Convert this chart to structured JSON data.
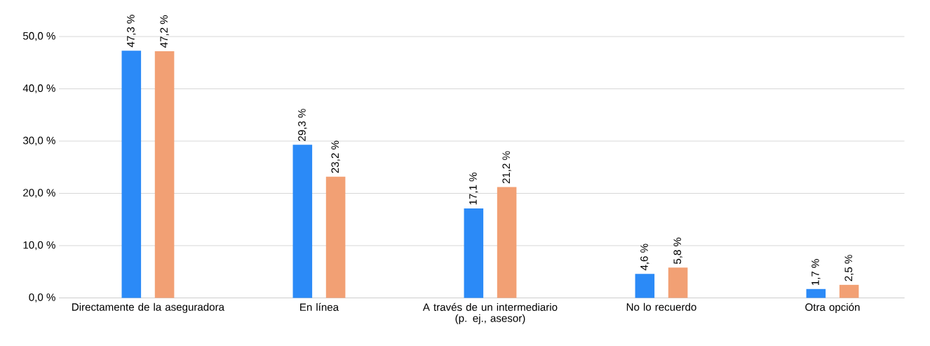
{
  "chart_data": {
    "type": "bar",
    "categories": [
      "Directamente de la aseguradora",
      "En línea",
      "A través de un intermediario (p. ej., asesor)",
      "No lo recuerdo",
      "Otra opción"
    ],
    "series": [
      {
        "color": "#2b8af7",
        "values": [
          47.3,
          29.3,
          17.1,
          4.6,
          1.7
        ],
        "value_labels": [
          "47,3 %",
          "29,3 %",
          "17,1 %",
          "4,6 %",
          "1,7 %"
        ]
      },
      {
        "color": "#f2a074",
        "values": [
          47.2,
          23.2,
          21.2,
          5.8,
          2.5
        ],
        "value_labels": [
          "47,2 %",
          "23,2 %",
          "21,2 %",
          "5,8 %",
          "2,5 %"
        ]
      }
    ],
    "ylim": [
      0,
      50
    ],
    "yticks": [
      {
        "value": 0,
        "label": "0,0 %"
      },
      {
        "value": 10,
        "label": "10,0 %"
      },
      {
        "value": 20,
        "label": "20,0 %"
      },
      {
        "value": 30,
        "label": "30,0 %"
      },
      {
        "value": 40,
        "label": "40,0 %"
      },
      {
        "value": 50,
        "label": "50,0 %"
      }
    ],
    "grid": "y"
  }
}
